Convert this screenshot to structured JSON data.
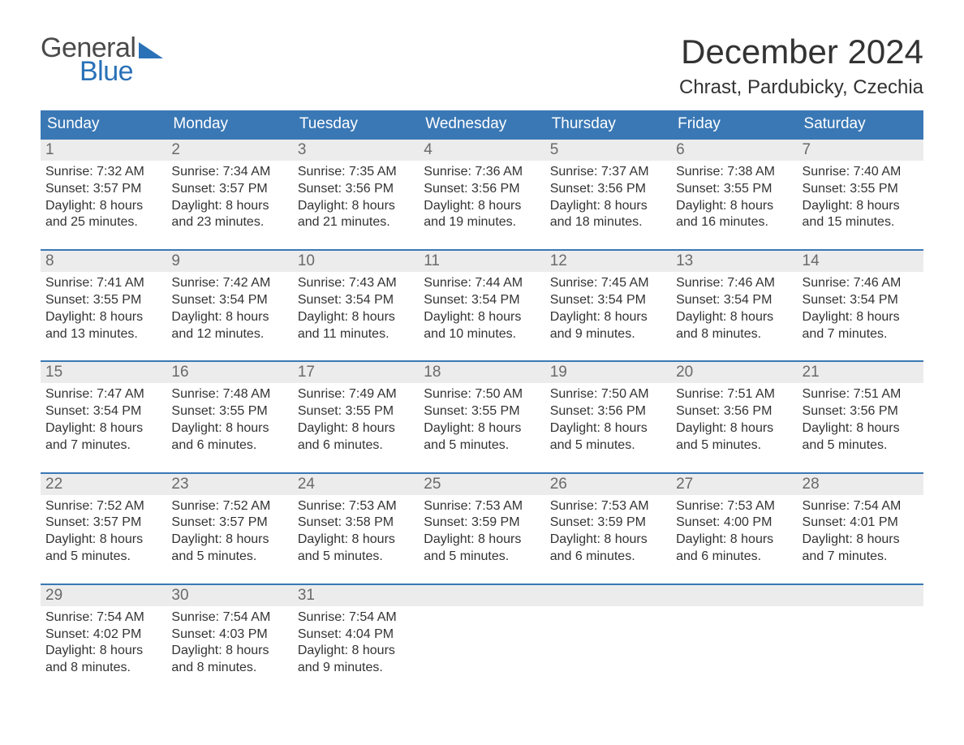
{
  "logo": {
    "text1": "General",
    "text2": "Blue"
  },
  "title": "December 2024",
  "location": "Chrast, Pardubicky, Czechia",
  "colors": {
    "header_bg": "#3a78b5",
    "header_text": "#ffffff",
    "daynum_bg": "#ececec",
    "daynum_text": "#6a6a6a",
    "body_text": "#333333",
    "logo_gray": "#4a4a4a",
    "logo_blue": "#2a71b8",
    "week_border": "#3a78b5",
    "background": "#ffffff"
  },
  "weekdays": [
    "Sunday",
    "Monday",
    "Tuesday",
    "Wednesday",
    "Thursday",
    "Friday",
    "Saturday"
  ],
  "weeks": [
    [
      {
        "n": "1",
        "sunrise": "Sunrise: 7:32 AM",
        "sunset": "Sunset: 3:57 PM",
        "d1": "Daylight: 8 hours",
        "d2": "and 25 minutes."
      },
      {
        "n": "2",
        "sunrise": "Sunrise: 7:34 AM",
        "sunset": "Sunset: 3:57 PM",
        "d1": "Daylight: 8 hours",
        "d2": "and 23 minutes."
      },
      {
        "n": "3",
        "sunrise": "Sunrise: 7:35 AM",
        "sunset": "Sunset: 3:56 PM",
        "d1": "Daylight: 8 hours",
        "d2": "and 21 minutes."
      },
      {
        "n": "4",
        "sunrise": "Sunrise: 7:36 AM",
        "sunset": "Sunset: 3:56 PM",
        "d1": "Daylight: 8 hours",
        "d2": "and 19 minutes."
      },
      {
        "n": "5",
        "sunrise": "Sunrise: 7:37 AM",
        "sunset": "Sunset: 3:56 PM",
        "d1": "Daylight: 8 hours",
        "d2": "and 18 minutes."
      },
      {
        "n": "6",
        "sunrise": "Sunrise: 7:38 AM",
        "sunset": "Sunset: 3:55 PM",
        "d1": "Daylight: 8 hours",
        "d2": "and 16 minutes."
      },
      {
        "n": "7",
        "sunrise": "Sunrise: 7:40 AM",
        "sunset": "Sunset: 3:55 PM",
        "d1": "Daylight: 8 hours",
        "d2": "and 15 minutes."
      }
    ],
    [
      {
        "n": "8",
        "sunrise": "Sunrise: 7:41 AM",
        "sunset": "Sunset: 3:55 PM",
        "d1": "Daylight: 8 hours",
        "d2": "and 13 minutes."
      },
      {
        "n": "9",
        "sunrise": "Sunrise: 7:42 AM",
        "sunset": "Sunset: 3:54 PM",
        "d1": "Daylight: 8 hours",
        "d2": "and 12 minutes."
      },
      {
        "n": "10",
        "sunrise": "Sunrise: 7:43 AM",
        "sunset": "Sunset: 3:54 PM",
        "d1": "Daylight: 8 hours",
        "d2": "and 11 minutes."
      },
      {
        "n": "11",
        "sunrise": "Sunrise: 7:44 AM",
        "sunset": "Sunset: 3:54 PM",
        "d1": "Daylight: 8 hours",
        "d2": "and 10 minutes."
      },
      {
        "n": "12",
        "sunrise": "Sunrise: 7:45 AM",
        "sunset": "Sunset: 3:54 PM",
        "d1": "Daylight: 8 hours",
        "d2": "and 9 minutes."
      },
      {
        "n": "13",
        "sunrise": "Sunrise: 7:46 AM",
        "sunset": "Sunset: 3:54 PM",
        "d1": "Daylight: 8 hours",
        "d2": "and 8 minutes."
      },
      {
        "n": "14",
        "sunrise": "Sunrise: 7:46 AM",
        "sunset": "Sunset: 3:54 PM",
        "d1": "Daylight: 8 hours",
        "d2": "and 7 minutes."
      }
    ],
    [
      {
        "n": "15",
        "sunrise": "Sunrise: 7:47 AM",
        "sunset": "Sunset: 3:54 PM",
        "d1": "Daylight: 8 hours",
        "d2": "and 7 minutes."
      },
      {
        "n": "16",
        "sunrise": "Sunrise: 7:48 AM",
        "sunset": "Sunset: 3:55 PM",
        "d1": "Daylight: 8 hours",
        "d2": "and 6 minutes."
      },
      {
        "n": "17",
        "sunrise": "Sunrise: 7:49 AM",
        "sunset": "Sunset: 3:55 PM",
        "d1": "Daylight: 8 hours",
        "d2": "and 6 minutes."
      },
      {
        "n": "18",
        "sunrise": "Sunrise: 7:50 AM",
        "sunset": "Sunset: 3:55 PM",
        "d1": "Daylight: 8 hours",
        "d2": "and 5 minutes."
      },
      {
        "n": "19",
        "sunrise": "Sunrise: 7:50 AM",
        "sunset": "Sunset: 3:56 PM",
        "d1": "Daylight: 8 hours",
        "d2": "and 5 minutes."
      },
      {
        "n": "20",
        "sunrise": "Sunrise: 7:51 AM",
        "sunset": "Sunset: 3:56 PM",
        "d1": "Daylight: 8 hours",
        "d2": "and 5 minutes."
      },
      {
        "n": "21",
        "sunrise": "Sunrise: 7:51 AM",
        "sunset": "Sunset: 3:56 PM",
        "d1": "Daylight: 8 hours",
        "d2": "and 5 minutes."
      }
    ],
    [
      {
        "n": "22",
        "sunrise": "Sunrise: 7:52 AM",
        "sunset": "Sunset: 3:57 PM",
        "d1": "Daylight: 8 hours",
        "d2": "and 5 minutes."
      },
      {
        "n": "23",
        "sunrise": "Sunrise: 7:52 AM",
        "sunset": "Sunset: 3:57 PM",
        "d1": "Daylight: 8 hours",
        "d2": "and 5 minutes."
      },
      {
        "n": "24",
        "sunrise": "Sunrise: 7:53 AM",
        "sunset": "Sunset: 3:58 PM",
        "d1": "Daylight: 8 hours",
        "d2": "and 5 minutes."
      },
      {
        "n": "25",
        "sunrise": "Sunrise: 7:53 AM",
        "sunset": "Sunset: 3:59 PM",
        "d1": "Daylight: 8 hours",
        "d2": "and 5 minutes."
      },
      {
        "n": "26",
        "sunrise": "Sunrise: 7:53 AM",
        "sunset": "Sunset: 3:59 PM",
        "d1": "Daylight: 8 hours",
        "d2": "and 6 minutes."
      },
      {
        "n": "27",
        "sunrise": "Sunrise: 7:53 AM",
        "sunset": "Sunset: 4:00 PM",
        "d1": "Daylight: 8 hours",
        "d2": "and 6 minutes."
      },
      {
        "n": "28",
        "sunrise": "Sunrise: 7:54 AM",
        "sunset": "Sunset: 4:01 PM",
        "d1": "Daylight: 8 hours",
        "d2": "and 7 minutes."
      }
    ],
    [
      {
        "n": "29",
        "sunrise": "Sunrise: 7:54 AM",
        "sunset": "Sunset: 4:02 PM",
        "d1": "Daylight: 8 hours",
        "d2": "and 8 minutes."
      },
      {
        "n": "30",
        "sunrise": "Sunrise: 7:54 AM",
        "sunset": "Sunset: 4:03 PM",
        "d1": "Daylight: 8 hours",
        "d2": "and 8 minutes."
      },
      {
        "n": "31",
        "sunrise": "Sunrise: 7:54 AM",
        "sunset": "Sunset: 4:04 PM",
        "d1": "Daylight: 8 hours",
        "d2": "and 9 minutes."
      },
      {
        "empty": true
      },
      {
        "empty": true
      },
      {
        "empty": true
      },
      {
        "empty": true
      }
    ]
  ]
}
